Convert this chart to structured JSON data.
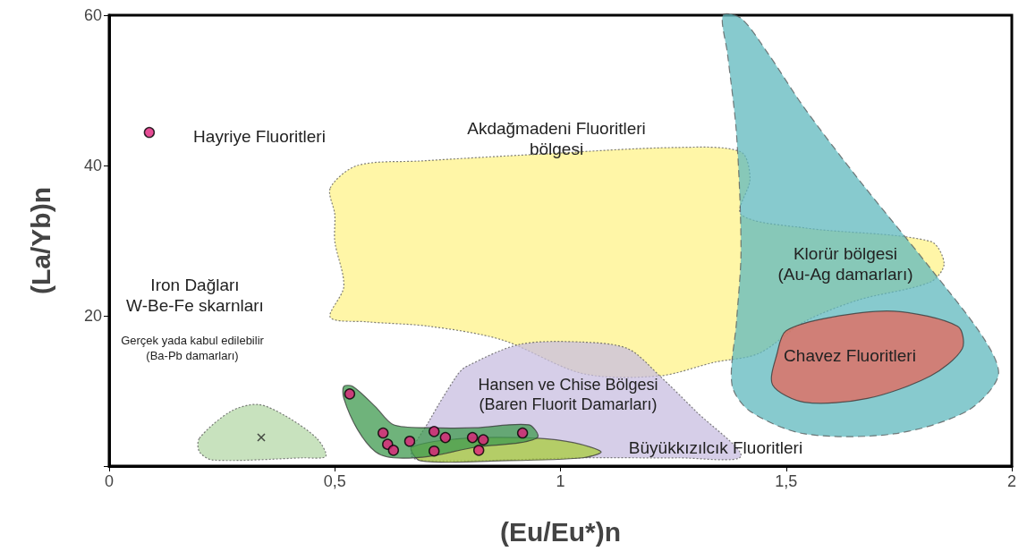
{
  "chart_data": {
    "type": "scatter",
    "xlabel": "(Eu/Eu*)n",
    "ylabel": "(La/Yb)n",
    "xlim": [
      0,
      2
    ],
    "xticks": [
      0,
      {
        "value": 0.5,
        "label": "0,5"
      },
      1,
      {
        "value": 1.5,
        "label": "1,5"
      },
      2
    ],
    "ylim": [
      0,
      60
    ],
    "yticks": [
      {
        "value": 0,
        "label": null
      },
      20,
      40,
      60
    ],
    "grid": false,
    "legend": false,
    "series": [
      {
        "type": "area",
        "color": "#fff38a",
        "line_style": "dotted",
        "x": [
          0.49,
          0.55,
          0.69,
          0.95,
          1.26,
          1.4,
          1.42,
          1.4,
          1.54,
          1.82,
          1.85,
          1.82,
          1.66,
          1.54,
          1.44,
          1.34,
          1.22,
          1.05,
          0.87,
          0.71,
          0.57,
          0.49,
          0.52,
          0.5,
          0.5
        ],
        "values": [
          37.0,
          40.0,
          40.6,
          41.5,
          42.4,
          41.8,
          38.2,
          33.5,
          31.7,
          29.9,
          26.9,
          24.5,
          22.1,
          19.2,
          15.0,
          13.8,
          12.0,
          12.3,
          16.8,
          18.6,
          19.2,
          19.8,
          23.9,
          29.9,
          33.5
        ]
      },
      {
        "type": "area",
        "color": "#5fb8bd",
        "line_style": "dashed",
        "x": [
          1.36,
          1.4,
          1.46,
          1.54,
          1.66,
          1.82,
          1.94,
          1.97,
          1.9,
          1.74,
          1.54,
          1.42,
          1.38,
          1.39,
          1.4,
          1.39,
          1.37
        ],
        "values": [
          60.0,
          59.6,
          54.9,
          47.7,
          38.2,
          26.3,
          16.8,
          12.0,
          7.3,
          4.3,
          4.3,
          7.3,
          10.8,
          19.2,
          28.7,
          44.2,
          54.9
        ]
      },
      {
        "type": "area",
        "color": "#e8665a",
        "line_style": "solid",
        "x": [
          1.5,
          1.6,
          1.74,
          1.88,
          1.89,
          1.82,
          1.68,
          1.54,
          1.47,
          1.48
        ],
        "values": [
          18.0,
          19.8,
          20.6,
          18.6,
          15.6,
          12.0,
          9.0,
          8.5,
          10.8,
          15.0
        ]
      },
      {
        "type": "area",
        "color": "#c8bde0",
        "line_style": "dotted",
        "x": [
          0.79,
          0.91,
          1.05,
          1.15,
          1.22,
          1.3,
          1.4,
          1.26,
          1.05,
          0.75,
          0.67,
          0.71,
          0.77
        ],
        "values": [
          13.2,
          16.2,
          16.5,
          15.6,
          12.0,
          7.3,
          1.3,
          1.1,
          1.1,
          0.7,
          1.3,
          6.1,
          12.0
        ]
      },
      {
        "type": "area",
        "color": "#a8cc3c",
        "line_style": "solid",
        "x": [
          0.67,
          0.79,
          0.95,
          1.03,
          1.09,
          1.05,
          0.87,
          0.69
        ],
        "values": [
          2.5,
          3.7,
          3.7,
          3.1,
          1.9,
          1.1,
          0.7,
          0.7
        ]
      },
      {
        "type": "area",
        "color": "#3f9a4f",
        "line_style": "solid",
        "x": [
          0.52,
          0.54,
          0.59,
          0.63,
          0.71,
          0.81,
          0.93,
          0.95,
          0.91,
          0.81,
          0.71,
          0.63,
          0.59,
          0.55,
          0.52
        ],
        "values": [
          10.6,
          10.6,
          7.9,
          5.5,
          5.1,
          5.1,
          5.5,
          3.9,
          3.1,
          2.5,
          1.3,
          1.1,
          1.9,
          4.9,
          9.0
        ]
      },
      {
        "type": "area",
        "color": "#b5d8a8",
        "line_style": "dotted",
        "x": [
          0.2,
          0.27,
          0.33,
          0.39,
          0.46,
          0.48,
          0.43,
          0.23,
          0.2
        ],
        "values": [
          3.7,
          7.3,
          8.2,
          6.7,
          3.7,
          1.3,
          1.1,
          0.8,
          1.9
        ]
      },
      {
        "color": "#e0207a",
        "marker": "circle",
        "x": [
          0.089,
          0.533,
          0.607,
          0.617,
          0.63,
          0.666,
          0.72,
          0.72,
          0.745,
          0.805,
          0.819,
          0.829,
          0.916
        ],
        "values": [
          44.4,
          9.6,
          4.4,
          2.9,
          2.1,
          3.3,
          4.6,
          2.0,
          3.8,
          3.8,
          2.1,
          3.5,
          4.4
        ]
      },
      {
        "color": "#222222",
        "marker": "cross",
        "x": [
          0.337
        ],
        "values": [
          3.8
        ]
      }
    ],
    "annotations": [
      "Hayriye Fluoritleri",
      "Akdağmadeni Fluoritleri\nbölgesi",
      "Klorür bölgesi\n(Au-Ag damarları)",
      "Chavez Fluoritleri",
      "Hansen ve Chise Bölgesi\n(Baren Fluorit Damarları)",
      "Büyükkızılcık Fluoritleri",
      "Iron Dağları\nW-Be-Fe skarnları",
      "Gerçek yada kabul edilebilir\n(Ba-Pb damarları)"
    ]
  }
}
